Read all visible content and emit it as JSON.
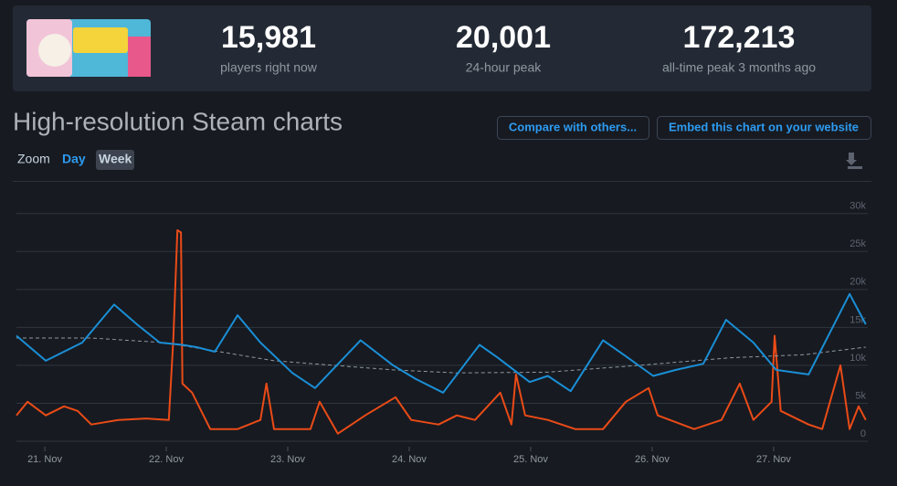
{
  "header": {
    "stats": [
      {
        "value": "15,981",
        "label": "players right now"
      },
      {
        "value": "20,001",
        "label": "24-hour peak"
      },
      {
        "value": "172,213",
        "label": "all-time peak 3 months ago"
      }
    ]
  },
  "title": "High-resolution Steam charts",
  "buttons": [
    "Compare with others...",
    "Embed this chart on your website"
  ],
  "zoom": {
    "label": "Zoom",
    "options": [
      "Day",
      "Week"
    ]
  },
  "chart_data": {
    "type": "line",
    "xlim": [
      -5.6,
      162.6
    ],
    "xticks": [
      {
        "value": 0,
        "label": "21. Nov"
      },
      {
        "value": 24,
        "label": "22. Nov"
      },
      {
        "value": 48,
        "label": "23. Nov"
      },
      {
        "value": 72,
        "label": "24. Nov"
      },
      {
        "value": 96,
        "label": "25. Nov"
      },
      {
        "value": 120,
        "label": "26. Nov"
      },
      {
        "value": 144,
        "label": "27. Nov"
      }
    ],
    "ylim": [
      0,
      34300
    ],
    "yticks": [
      0,
      {
        "value": 5000,
        "label": "5k"
      },
      {
        "value": 10000,
        "label": "10k"
      },
      {
        "value": 15000,
        "label": "15k"
      },
      {
        "value": 20000,
        "label": "20k"
      },
      {
        "value": 25000,
        "label": "25k"
      },
      {
        "value": 30000,
        "label": "30k"
      }
    ],
    "grid": true,
    "series": [
      {
        "color": "#ea4b17",
        "x": [
          -5.6,
          -3.4,
          0.2,
          3.8,
          6.5,
          9.2,
          14.6,
          20.0,
          24.5,
          25.4,
          26.2,
          26.9,
          27.2,
          29.1,
          32.7,
          38.1,
          42.6,
          43.8,
          45.3,
          52.5,
          54.3,
          57.9,
          63.3,
          69.3,
          72.4,
          77.8,
          81.4,
          85.0,
          90.0,
          92.2,
          93.1,
          94.9,
          99.4,
          104.8,
          110.3,
          114.8,
          119.3,
          121.1,
          128.3,
          133.7,
          137.3,
          140.0,
          143.6,
          144.2,
          145.4,
          150.9,
          153.6,
          157.2,
          159.0,
          160.8,
          162.2
        ],
        "values": [
          3400,
          5200,
          3400,
          4600,
          4000,
          2200,
          2800,
          3000,
          2800,
          13600,
          27800,
          27500,
          7600,
          6400,
          1600,
          1600,
          2800,
          7600,
          1600,
          1600,
          5200,
          1000,
          3400,
          5800,
          2800,
          2200,
          3400,
          2800,
          6400,
          2200,
          8800,
          3400,
          2800,
          1600,
          1600,
          5200,
          7000,
          3400,
          1600,
          2800,
          7600,
          2800,
          5200,
          13900,
          4000,
          2200,
          1600,
          10000,
          1600,
          4600,
          2800
        ]
      },
      {
        "color": "#8f98a0",
        "dashed": true,
        "x": [
          -5.6,
          9.2,
          23.6,
          45.3,
          68.8,
          81.4,
          99.4,
          117.5,
          135.5,
          150.0,
          162.2
        ],
        "values": [
          13600,
          13600,
          13000,
          10600,
          9400,
          9000,
          9100,
          10000,
          11000,
          11400,
          12400
        ]
      },
      {
        "color": "#1a8fd6",
        "x": [
          -5.6,
          0.2,
          7.4,
          13.7,
          18.2,
          22.7,
          27.2,
          30.0,
          33.6,
          38.1,
          42.6,
          48.9,
          53.4,
          62.4,
          68.8,
          73.3,
          78.7,
          85.9,
          89.5,
          95.8,
          99.4,
          103.9,
          110.3,
          114.8,
          120.2,
          124.7,
          130.1,
          134.6,
          140.0,
          144.5,
          150.9,
          159.0,
          162.2
        ],
        "values": [
          13900,
          10600,
          13000,
          18000,
          15400,
          13000,
          12700,
          12400,
          11800,
          16600,
          13000,
          9000,
          7000,
          13300,
          10000,
          8200,
          6400,
          12700,
          11000,
          7800,
          8600,
          6600,
          13300,
          11200,
          8600,
          9400,
          10200,
          16000,
          13000,
          9400,
          8800,
          19400,
          15400
        ]
      }
    ]
  }
}
